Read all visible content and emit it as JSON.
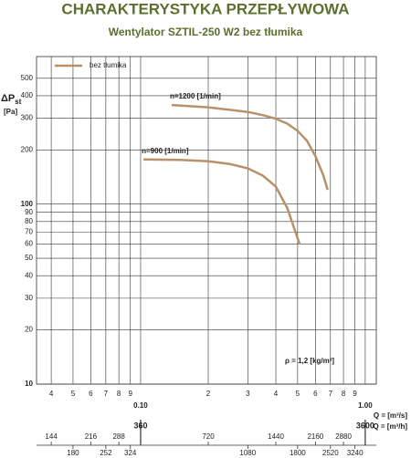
{
  "chart_data": {
    "type": "line",
    "title": "CHARAKTERYSTYKA PRZEPŁYWOWA",
    "subtitle": "Wentylator SZTIL-250 W2 bez tłumika",
    "y_label": {
      "text": "ΔP",
      "subscript": "st"
    },
    "y_unit": "[Pa]",
    "x_label": "Q = [m³/s]",
    "x2_label": "Q = [m³/h]",
    "legend": "bez tłumika",
    "legend_color": "#b8916a",
    "annotation": "ρ = 1,2 [kg/m³]",
    "xscale": "log",
    "yscale": "log",
    "grid": true,
    "xlim": [
      0.0344,
      1.12
    ],
    "ylim": [
      10,
      660
    ],
    "xticks": [
      {
        "value": 0.04,
        "label": "4"
      },
      {
        "value": 0.05,
        "label": "5"
      },
      {
        "value": 0.06,
        "label": "6"
      },
      {
        "value": 0.07,
        "label": "7"
      },
      {
        "value": 0.08,
        "label": "8"
      },
      {
        "value": 0.09,
        "label": "9"
      },
      {
        "value": 0.1,
        "label": "0.10"
      },
      {
        "value": 0.2,
        "label": "2"
      },
      {
        "value": 0.3,
        "label": "3"
      },
      {
        "value": 0.4,
        "label": "4"
      },
      {
        "value": 0.5,
        "label": "5"
      },
      {
        "value": 0.6,
        "label": "6"
      },
      {
        "value": 0.7,
        "label": "7"
      },
      {
        "value": 0.8,
        "label": "8"
      },
      {
        "value": 0.9,
        "label": "9"
      },
      {
        "value": 1,
        "label": "1.00"
      }
    ],
    "yticks": [
      10,
      20,
      30,
      40,
      50,
      60,
      70,
      80,
      90,
      100,
      200,
      300,
      400,
      500
    ],
    "x2lim": [
      123.84,
      4032
    ],
    "x2ticks": [
      144,
      180,
      216,
      252,
      288,
      324,
      360,
      720,
      1080,
      1440,
      1800,
      2160,
      2520,
      2880,
      3240,
      3600
    ],
    "series": [
      {
        "name": "n=1200 [1/min]",
        "color": "#b8916a",
        "x": [
          0.1375,
          0.2,
          0.3,
          0.35,
          0.4,
          0.45,
          0.5,
          0.55,
          0.6,
          0.65,
          0.68
        ],
        "values": [
          355,
          345,
          325,
          312,
          298,
          280,
          255,
          225,
          185,
          145,
          120
        ]
      },
      {
        "name": "n=900 [1/min]",
        "color": "#b8916a",
        "x": [
          0.103,
          0.15,
          0.2,
          0.25,
          0.3,
          0.35,
          0.4,
          0.45,
          0.51
        ],
        "values": [
          177,
          176,
          173,
          167,
          158,
          144,
          125,
          95,
          60
        ]
      }
    ]
  }
}
